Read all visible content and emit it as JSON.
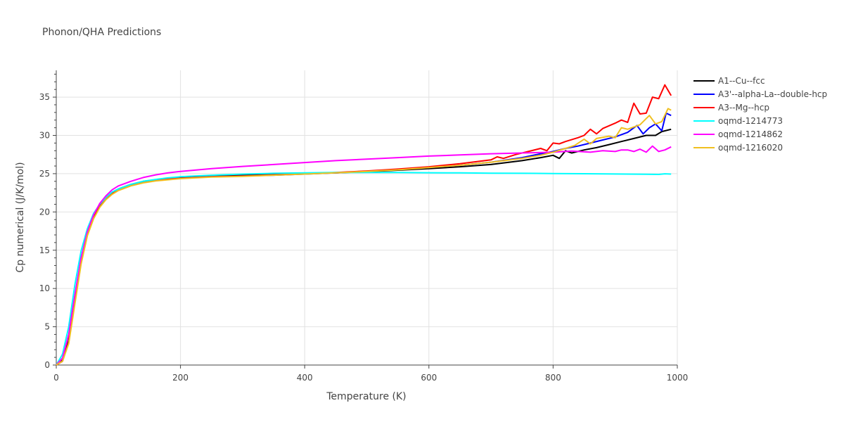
{
  "chart_data": {
    "type": "line",
    "title": "Phonon/QHA Predictions",
    "xlabel": "Temperature (K)",
    "ylabel": "Cp numerical (J/K/mol)",
    "xlim": [
      0,
      1000
    ],
    "ylim": [
      0,
      38.5
    ],
    "xticks": [
      0,
      200,
      400,
      600,
      800,
      1000
    ],
    "yticks": [
      0,
      5,
      10,
      15,
      20,
      25,
      30,
      35
    ],
    "grid": true,
    "legend_position": "top-right",
    "series": [
      {
        "name": "A1--Cu--fcc",
        "color": "#000000",
        "x": [
          0,
          10,
          20,
          30,
          40,
          50,
          60,
          70,
          80,
          90,
          100,
          120,
          140,
          160,
          180,
          200,
          250,
          300,
          350,
          400,
          450,
          500,
          550,
          600,
          650,
          700,
          750,
          780,
          800,
          810,
          820,
          830,
          850,
          870,
          890,
          910,
          930,
          950,
          965,
          975,
          990
        ],
        "y": [
          0,
          0.6,
          3.2,
          8.5,
          13.6,
          17.1,
          19.3,
          20.8,
          21.8,
          22.5,
          23.0,
          23.6,
          24.0,
          24.2,
          24.4,
          24.5,
          24.7,
          24.8,
          24.9,
          25.0,
          25.1,
          25.25,
          25.45,
          25.65,
          25.9,
          26.2,
          26.7,
          27.1,
          27.4,
          27.0,
          28.0,
          27.7,
          28.1,
          28.4,
          28.8,
          29.2,
          29.6,
          30.0,
          30.0,
          30.5,
          30.8
        ]
      },
      {
        "name": "A3'--alpha-La--double-hcp",
        "color": "#0000ff",
        "x": [
          0,
          10,
          20,
          30,
          40,
          50,
          60,
          70,
          80,
          90,
          100,
          120,
          140,
          160,
          180,
          200,
          250,
          300,
          350,
          400,
          450,
          500,
          550,
          600,
          650,
          700,
          750,
          780,
          800,
          820,
          840,
          860,
          880,
          900,
          920,
          935,
          945,
          955,
          965,
          975,
          982,
          990
        ],
        "y": [
          0,
          0.5,
          3.0,
          8.3,
          13.4,
          17.0,
          19.2,
          20.7,
          21.7,
          22.4,
          22.9,
          23.5,
          23.9,
          24.1,
          24.3,
          24.4,
          24.6,
          24.7,
          24.8,
          24.95,
          25.1,
          25.3,
          25.55,
          25.8,
          26.1,
          26.5,
          27.1,
          27.6,
          27.9,
          28.3,
          28.6,
          29.0,
          29.4,
          29.8,
          30.4,
          31.3,
          30.2,
          31.0,
          31.5,
          30.6,
          32.9,
          32.6
        ]
      },
      {
        "name": "A3--Mg--hcp",
        "color": "#ff0000",
        "x": [
          0,
          10,
          20,
          30,
          40,
          50,
          60,
          70,
          80,
          90,
          100,
          120,
          140,
          160,
          180,
          200,
          250,
          300,
          350,
          400,
          450,
          500,
          550,
          600,
          650,
          700,
          710,
          720,
          740,
          760,
          780,
          790,
          800,
          810,
          820,
          840,
          850,
          860,
          870,
          880,
          900,
          910,
          920,
          930,
          940,
          950,
          960,
          970,
          980,
          990
        ],
        "y": [
          0,
          0.5,
          3.0,
          8.3,
          13.4,
          17.0,
          19.2,
          20.7,
          21.7,
          22.4,
          22.9,
          23.5,
          23.9,
          24.1,
          24.3,
          24.4,
          24.6,
          24.7,
          24.85,
          25.0,
          25.15,
          25.35,
          25.6,
          25.9,
          26.3,
          26.8,
          27.2,
          27.0,
          27.5,
          27.9,
          28.3,
          28.0,
          29.0,
          28.9,
          29.2,
          29.7,
          30.0,
          30.8,
          30.2,
          30.9,
          31.6,
          32.0,
          31.7,
          34.2,
          32.8,
          32.9,
          35.0,
          34.8,
          36.6,
          35.2
        ]
      },
      {
        "name": "oqmd-1214773",
        "color": "#00ffff",
        "x": [
          0,
          10,
          20,
          30,
          40,
          50,
          60,
          70,
          80,
          90,
          100,
          120,
          140,
          160,
          180,
          200,
          250,
          300,
          350,
          400,
          450,
          500,
          550,
          600,
          650,
          700,
          750,
          800,
          850,
          900,
          950,
          970,
          980,
          990
        ],
        "y": [
          0,
          1.4,
          5.0,
          10.5,
          14.9,
          17.8,
          19.8,
          21.0,
          21.9,
          22.6,
          23.0,
          23.6,
          24.0,
          24.25,
          24.45,
          24.6,
          24.8,
          24.95,
          25.05,
          25.1,
          25.15,
          25.15,
          25.15,
          25.12,
          25.1,
          25.07,
          25.05,
          25.02,
          24.99,
          24.96,
          24.93,
          24.9,
          24.98,
          24.95
        ]
      },
      {
        "name": "oqmd-1214862",
        "color": "#ff00ff",
        "x": [
          0,
          10,
          20,
          30,
          40,
          50,
          60,
          70,
          80,
          90,
          100,
          120,
          140,
          160,
          180,
          200,
          250,
          300,
          350,
          400,
          450,
          500,
          550,
          600,
          650,
          700,
          750,
          800,
          830,
          860,
          880,
          900,
          910,
          920,
          930,
          940,
          950,
          960,
          970,
          980,
          990
        ],
        "y": [
          0,
          0.9,
          4.0,
          9.2,
          14.0,
          17.4,
          19.6,
          21.1,
          22.1,
          22.9,
          23.4,
          24.0,
          24.5,
          24.85,
          25.1,
          25.3,
          25.65,
          25.95,
          26.2,
          26.45,
          26.7,
          26.9,
          27.1,
          27.3,
          27.45,
          27.6,
          27.7,
          27.8,
          27.95,
          27.8,
          28.0,
          27.9,
          28.1,
          28.1,
          27.9,
          28.2,
          27.8,
          28.6,
          27.9,
          28.1,
          28.5
        ]
      },
      {
        "name": "oqmd-1216020",
        "color": "#f0c020",
        "x": [
          0,
          10,
          20,
          30,
          40,
          50,
          60,
          70,
          80,
          90,
          100,
          120,
          140,
          160,
          180,
          200,
          250,
          300,
          350,
          400,
          450,
          500,
          550,
          600,
          650,
          700,
          750,
          780,
          800,
          820,
          835,
          850,
          860,
          870,
          890,
          900,
          910,
          920,
          930,
          940,
          950,
          955,
          965,
          975,
          985,
          990
        ],
        "y": [
          0,
          0.5,
          2.8,
          8.0,
          13.2,
          16.9,
          19.1,
          20.6,
          21.6,
          22.3,
          22.8,
          23.4,
          23.8,
          24.05,
          24.2,
          24.35,
          24.55,
          24.65,
          24.8,
          24.95,
          25.1,
          25.3,
          25.5,
          25.8,
          26.1,
          26.5,
          27.0,
          27.4,
          27.8,
          28.3,
          28.7,
          29.5,
          28.9,
          29.6,
          29.9,
          29.7,
          31.0,
          30.8,
          31.1,
          31.4,
          32.2,
          32.6,
          31.5,
          31.8,
          33.5,
          33.3
        ]
      }
    ]
  }
}
